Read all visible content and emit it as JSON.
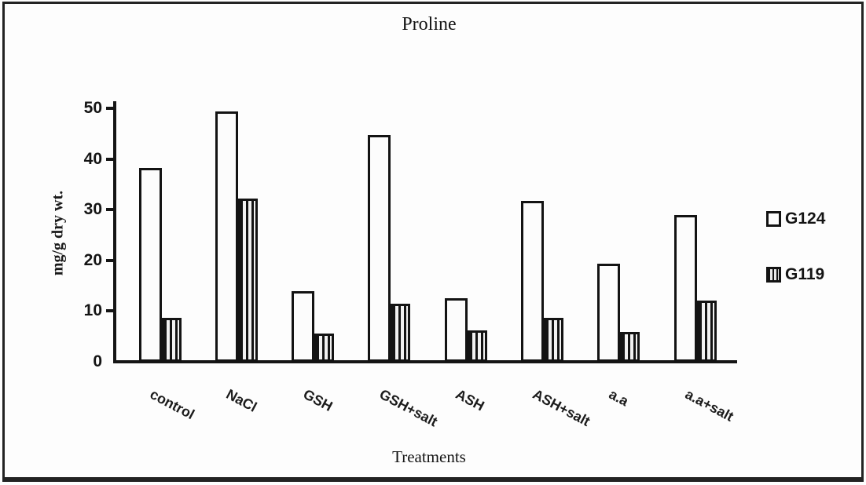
{
  "chart_data": {
    "type": "bar",
    "title": "Proline",
    "xlabel": "Treatments",
    "ylabel": "mg/g dry wt.",
    "categories": [
      "control",
      "NaCl",
      "GSH",
      "GSH+salt",
      "ASH",
      "ASH+salt",
      "a.a",
      "a.a+salt"
    ],
    "series": [
      {
        "name": "G124",
        "style": "white-open-bar",
        "values": [
          38.3,
          49.4,
          14.0,
          44.7,
          12.6,
          31.8,
          19.4,
          29.0
        ]
      },
      {
        "name": "G119",
        "style": "vertical-striped-bar",
        "values": [
          8.6,
          32.2,
          5.5,
          11.4,
          6.2,
          8.7,
          5.9,
          12.1
        ]
      }
    ],
    "ylim": [
      0,
      50
    ],
    "yticks": [
      0,
      10,
      20,
      30,
      40,
      50
    ],
    "grid": false,
    "legend_position": "right-outside",
    "colors": {
      "bar_outline": "#131313",
      "axis": "#151515",
      "background": "#fefefe"
    }
  },
  "legend": {
    "items": [
      {
        "label": "G124",
        "swatch": "open-square"
      },
      {
        "label": "G119",
        "swatch": "striped-square"
      }
    ]
  }
}
